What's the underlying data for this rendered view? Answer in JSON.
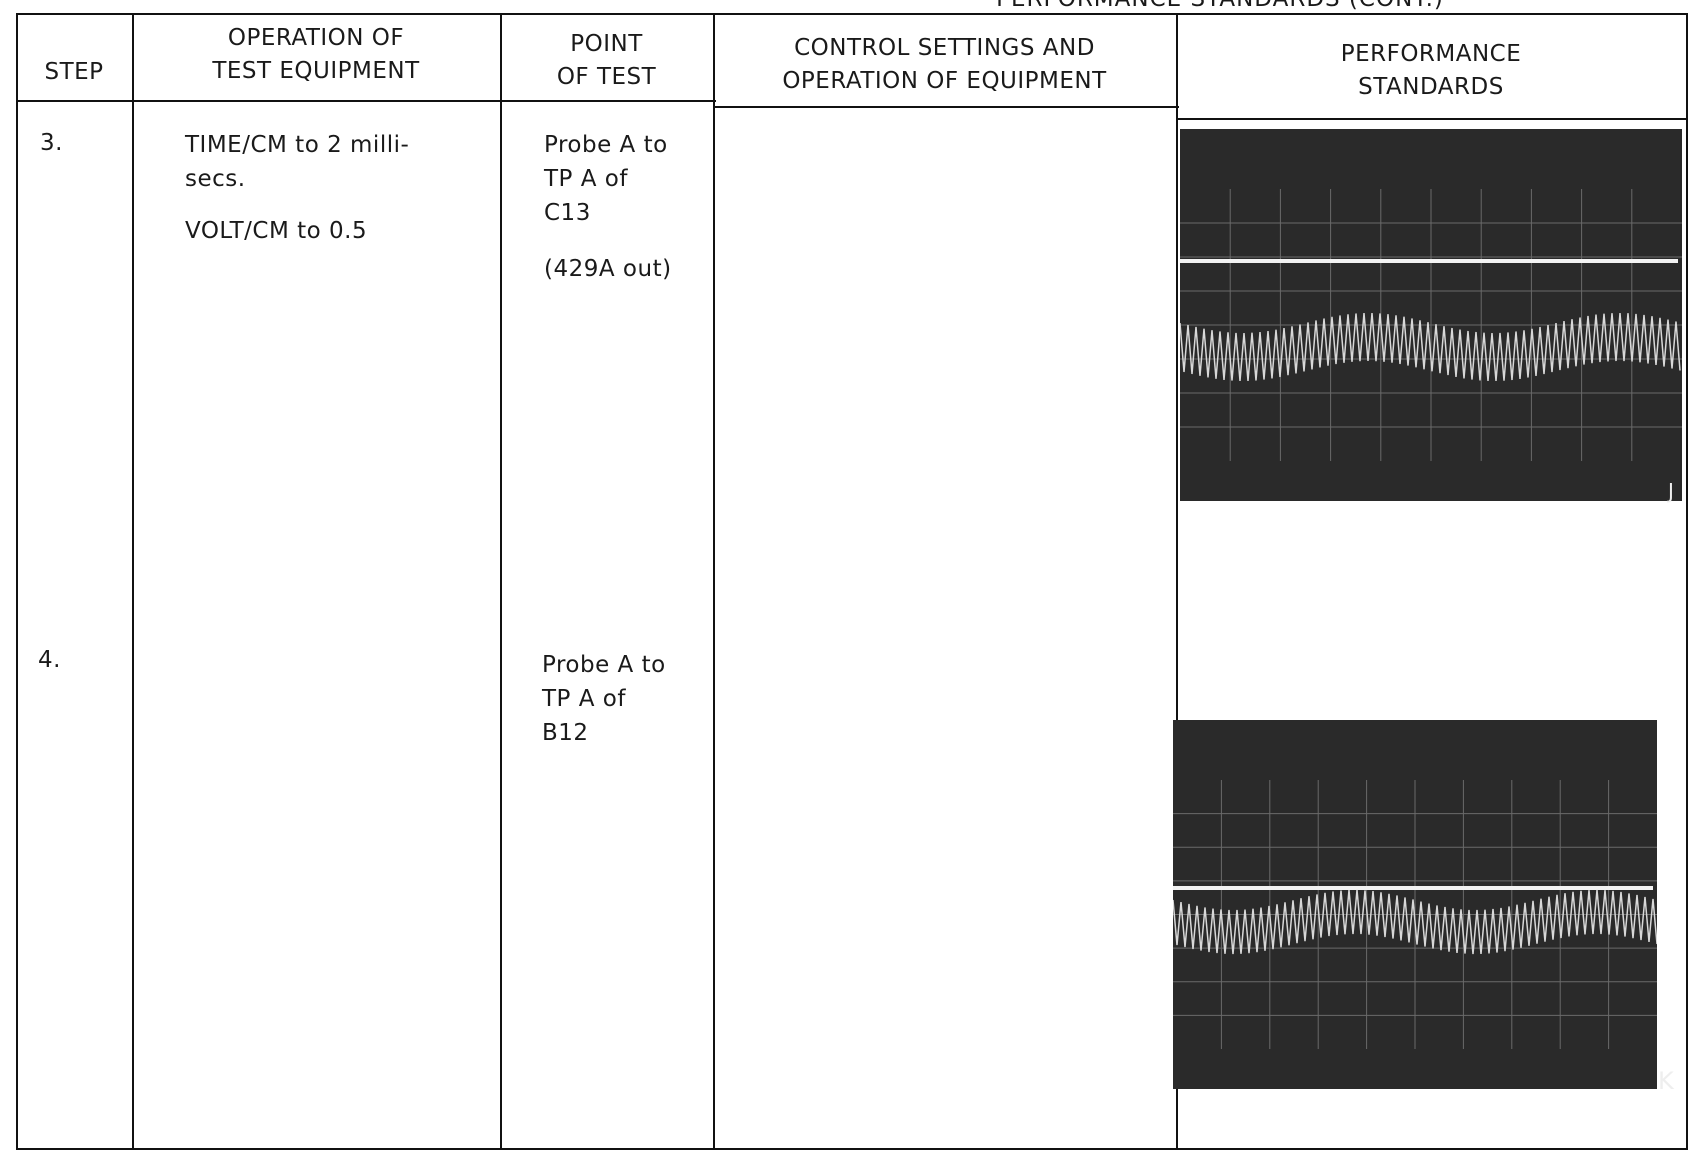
{
  "header": {
    "title": "PERFORMANCE STANDARDS (CONT.)"
  },
  "table": {
    "columns": [
      "STEP",
      "OPERATION OF\nTEST EQUIPMENT",
      "POINT\nOF TEST",
      "CONTROL SETTINGS AND\nOPERATION OF EQUIPMENT",
      "PERFORMANCE\nSTANDARDS"
    ],
    "rows": [
      {
        "step": "3.",
        "operation": [
          "TIME/CM to 2 milli-\nsecs.",
          "VOLT/CM to 0.5"
        ],
        "point": [
          "Probe A to\nTP A of\nC13",
          "(429A out)"
        ],
        "figure": "J"
      },
      {
        "step": "4.",
        "point": [
          "Probe A to\nTP A of\nB12"
        ],
        "figure": "K"
      }
    ]
  }
}
